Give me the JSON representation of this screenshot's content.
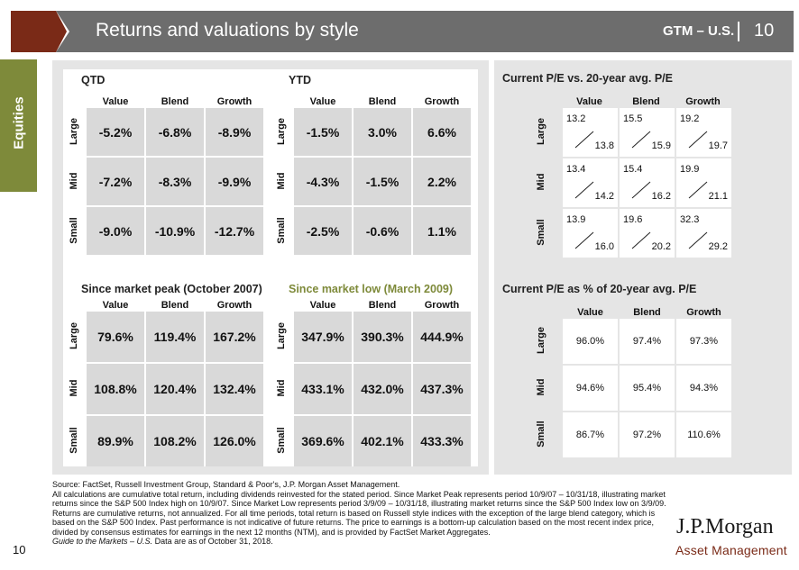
{
  "header": {
    "title": "Returns and valuations by style",
    "section": "GTM – U.S.",
    "separator": "|",
    "page": "10"
  },
  "side_tab": {
    "label": "Equities"
  },
  "returns": {
    "columns": [
      "Value",
      "Blend",
      "Growth"
    ],
    "rows": [
      "Large",
      "Mid",
      "Small"
    ],
    "qtd": {
      "title": "QTD",
      "values": [
        [
          "-5.2%",
          "-6.8%",
          "-8.9%"
        ],
        [
          "-7.2%",
          "-8.3%",
          "-9.9%"
        ],
        [
          "-9.0%",
          "-10.9%",
          "-12.7%"
        ]
      ]
    },
    "ytd": {
      "title": "YTD",
      "values": [
        [
          "-1.5%",
          "3.0%",
          "6.6%"
        ],
        [
          "-4.3%",
          "-1.5%",
          "2.2%"
        ],
        [
          "-2.5%",
          "-0.6%",
          "1.1%"
        ]
      ]
    },
    "since_peak": {
      "title": "Since market peak (October 2007)",
      "values": [
        [
          "79.6%",
          "119.4%",
          "167.2%"
        ],
        [
          "108.8%",
          "120.4%",
          "132.4%"
        ],
        [
          "89.9%",
          "108.2%",
          "126.0%"
        ]
      ]
    },
    "since_low": {
      "title": "Since market low (March 2009)",
      "title_color": "#7e8a3a",
      "values": [
        [
          "347.9%",
          "390.3%",
          "444.9%"
        ],
        [
          "433.1%",
          "432.0%",
          "437.3%"
        ],
        [
          "369.6%",
          "402.1%",
          "433.3%"
        ]
      ]
    }
  },
  "pe_vs_avg": {
    "title": "Current P/E vs. 20-year avg. P/E",
    "columns": [
      "Value",
      "Blend",
      "Growth"
    ],
    "rows": [
      "Large",
      "Mid",
      "Small"
    ],
    "current": [
      [
        "13.2",
        "15.5",
        "19.2"
      ],
      [
        "13.4",
        "15.4",
        "19.9"
      ],
      [
        "13.9",
        "19.6",
        "32.3"
      ]
    ],
    "average": [
      [
        "13.8",
        "15.9",
        "19.7"
      ],
      [
        "14.2",
        "16.2",
        "21.1"
      ],
      [
        "16.0",
        "20.2",
        "29.2"
      ]
    ]
  },
  "pe_pct": {
    "title": "Current P/E as % of 20-year avg. P/E",
    "columns": [
      "Value",
      "Blend",
      "Growth"
    ],
    "rows": [
      "Large",
      "Mid",
      "Small"
    ],
    "values": [
      [
        "96.0%",
        "97.4%",
        "97.3%"
      ],
      [
        "94.6%",
        "95.4%",
        "94.3%"
      ],
      [
        "86.7%",
        "97.2%",
        "110.6%"
      ]
    ]
  },
  "footnote": {
    "source": "Source: FactSet, Russell Investment Group, Standard & Poor's, J.P. Morgan Asset Management.",
    "body": "All calculations are cumulative total return, including dividends reinvested for the stated period. Since Market Peak represents period 10/9/07 – 10/31/18, illustrating market returns since the S&P 500 Index high on 10/9/07. Since Market Low represents period 3/9/09 – 10/31/18, illustrating market returns since the S&P 500 Index low on 3/9/09. Returns are cumulative returns, not annualized. For all time periods, total return is based on Russell style indices with the exception of the large blend category, which is based on the S&P 500 Index. Past performance is not indicative of future returns. The price to earnings is a bottom-up calculation based on the most recent index price, divided by consensus estimates for earnings in the next 12 months (NTM), and is provided by FactSet Market Aggregates.",
    "guide": "Guide to the Markets – U.S.",
    "asof": " Data are as of October 31, 2018."
  },
  "page_number": "10",
  "logo": {
    "main": "J.P.Morgan",
    "sub": "Asset Management"
  },
  "colors": {
    "header": "#6d6d6d",
    "chevron": "#7a2a17",
    "accent_green": "#7e8a3a",
    "panel": "#e5e5e5",
    "cell": "#d9d9d9"
  }
}
